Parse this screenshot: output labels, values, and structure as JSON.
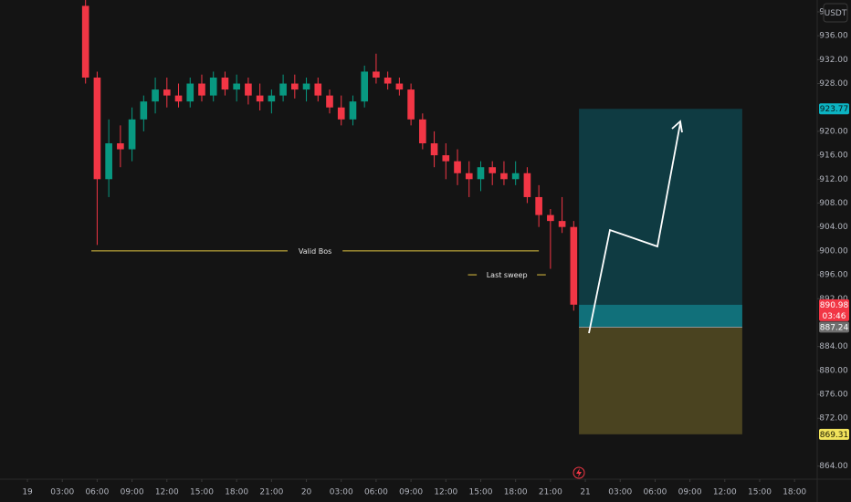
{
  "chart_data": {
    "type": "candlestick",
    "currency": "USDT",
    "x": [
      5,
      6,
      7,
      8,
      9,
      10,
      11,
      12,
      13,
      14,
      15,
      16,
      17,
      18,
      19,
      20,
      21,
      22,
      23,
      24,
      25,
      26,
      27,
      28,
      29,
      30,
      31,
      32,
      33,
      34,
      35,
      36,
      37,
      38,
      39,
      40,
      41,
      42,
      43,
      44,
      45,
      46,
      47
    ],
    "open": [
      941,
      929,
      912,
      918,
      917,
      922,
      925,
      927,
      926,
      925,
      928,
      926,
      929,
      927,
      928,
      926,
      925,
      926,
      928,
      927,
      928,
      926,
      924,
      922,
      925,
      930,
      929,
      928,
      927,
      922,
      918,
      916,
      915,
      913,
      912,
      914,
      913,
      912,
      913,
      909,
      906,
      905,
      904
    ],
    "high": [
      942,
      930,
      922,
      921,
      924,
      926,
      929,
      929,
      928,
      929,
      929.5,
      930,
      930,
      929.5,
      929,
      928,
      927,
      929.5,
      929.5,
      929,
      929,
      927,
      926,
      926,
      931,
      933,
      930,
      929,
      928,
      923,
      920,
      918,
      917,
      915,
      915,
      915,
      915,
      915,
      914,
      911,
      907,
      909,
      905
    ],
    "low": [
      928,
      901,
      909,
      914,
      915,
      920,
      923,
      924,
      924,
      924,
      925,
      925,
      926,
      925,
      924.5,
      923.5,
      923,
      925,
      925.5,
      925,
      925,
      923,
      921,
      921,
      924,
      928,
      927,
      926,
      921,
      917,
      914,
      912,
      911,
      909,
      910,
      911,
      911,
      911,
      908,
      904,
      897,
      903,
      890
    ],
    "close": [
      929,
      912,
      918,
      917,
      922,
      925,
      927,
      926,
      925,
      928,
      926,
      929,
      927,
      928,
      926,
      925,
      926,
      928,
      927,
      928,
      926,
      924,
      922,
      925,
      930,
      929,
      928,
      927,
      922,
      918,
      916,
      915,
      913,
      912,
      914,
      913,
      912,
      913,
      909,
      906,
      905,
      904,
      891
    ],
    "up_color": "#089981",
    "down_color": "#f23645",
    "xlim": [
      -2.36,
      67.95
    ],
    "xticks": [
      {
        "value": 0,
        "label": "19"
      },
      {
        "value": 3,
        "label": "03:00"
      },
      {
        "value": 6,
        "label": "06:00"
      },
      {
        "value": 9,
        "label": "09:00"
      },
      {
        "value": 12,
        "label": "12:00"
      },
      {
        "value": 15,
        "label": "15:00"
      },
      {
        "value": 18,
        "label": "18:00"
      },
      {
        "value": 21,
        "label": "21:00"
      },
      {
        "value": 24,
        "label": "20"
      },
      {
        "value": 27,
        "label": "03:00"
      },
      {
        "value": 30,
        "label": "06:00"
      },
      {
        "value": 33,
        "label": "09:00"
      },
      {
        "value": 36,
        "label": "12:00"
      },
      {
        "value": 39,
        "label": "15:00"
      },
      {
        "value": 42,
        "label": "18:00"
      },
      {
        "value": 45,
        "label": "21:00"
      },
      {
        "value": 48,
        "label": "21"
      },
      {
        "value": 51,
        "label": "03:00"
      },
      {
        "value": 54,
        "label": "06:00"
      },
      {
        "value": 57,
        "label": "09:00"
      },
      {
        "value": 60,
        "label": "12:00"
      },
      {
        "value": 63,
        "label": "15:00"
      },
      {
        "value": 66,
        "label": "18:00"
      }
    ],
    "ylim": [
      861.8,
      941.98
    ],
    "yticks": [
      {
        "value": 940,
        "label": "940.00"
      },
      {
        "value": 936,
        "label": "936.00"
      },
      {
        "value": 932,
        "label": "932.00"
      },
      {
        "value": 928,
        "label": "928.00"
      },
      {
        "value": 920,
        "label": "920.00"
      },
      {
        "value": 916,
        "label": "916.00"
      },
      {
        "value": 912,
        "label": "912.00"
      },
      {
        "value": 908,
        "label": "908.00"
      },
      {
        "value": 904,
        "label": "904.00"
      },
      {
        "value": 900,
        "label": "900.00"
      },
      {
        "value": 896,
        "label": "896.00"
      },
      {
        "value": 892,
        "label": "892.00"
      },
      {
        "value": 884,
        "label": "884.00"
      },
      {
        "value": 880,
        "label": "880.00"
      },
      {
        "value": 876,
        "label": "876.00"
      },
      {
        "value": 872,
        "label": "872.00"
      },
      {
        "value": 864,
        "label": "864.00"
      }
    ],
    "last_price": 890.98,
    "countdown": "03:46",
    "position": {
      "entry": 887.24,
      "target": 923.77,
      "stop": 869.31,
      "start": 47.45,
      "end": 61.5
    },
    "annotations": [
      {
        "text": "Valid Bos",
        "price": 900,
        "x_start": 5.5,
        "x_end": 44.0
      },
      {
        "text": "Last sweep",
        "price": 896,
        "x_start": 37.9,
        "x_end": 44.6
      }
    ]
  }
}
